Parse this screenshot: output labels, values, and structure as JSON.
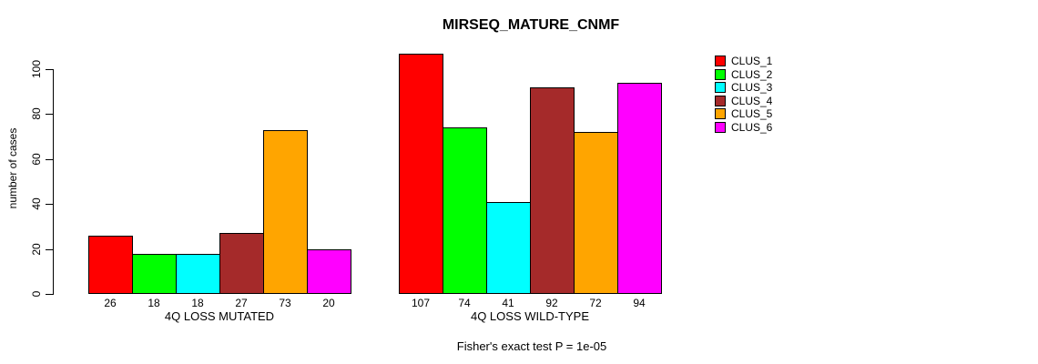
{
  "chart_data": {
    "type": "bar",
    "title": "MIRSEQ_MATURE_CNMF",
    "ylabel": "number of cases",
    "xlabel": "",
    "footnote": "Fisher's exact test P = 1e-05",
    "ylim": [
      0,
      100
    ],
    "yticks": [
      0,
      20,
      40,
      60,
      80,
      100
    ],
    "grid": false,
    "legend_position": "right",
    "bar_value_labels_shown": true,
    "categories": [
      "4Q LOSS MUTATED",
      "4Q LOSS WILD-TYPE"
    ],
    "series": [
      {
        "name": "CLUS_1",
        "color": "#FF0000",
        "values": [
          26,
          107
        ]
      },
      {
        "name": "CLUS_2",
        "color": "#00FF00",
        "values": [
          18,
          74
        ]
      },
      {
        "name": "CLUS_3",
        "color": "#00FFFF",
        "values": [
          18,
          41
        ]
      },
      {
        "name": "CLUS_4",
        "color": "#A52A2A",
        "values": [
          27,
          92
        ]
      },
      {
        "name": "CLUS_5",
        "color": "#FFA500",
        "values": [
          73,
          72
        ]
      },
      {
        "name": "CLUS_6",
        "color": "#FF00FF",
        "values": [
          20,
          94
        ]
      }
    ],
    "colors": {
      "background": "#FFFFFF",
      "axis": "#000000",
      "text": "#000000"
    }
  }
}
